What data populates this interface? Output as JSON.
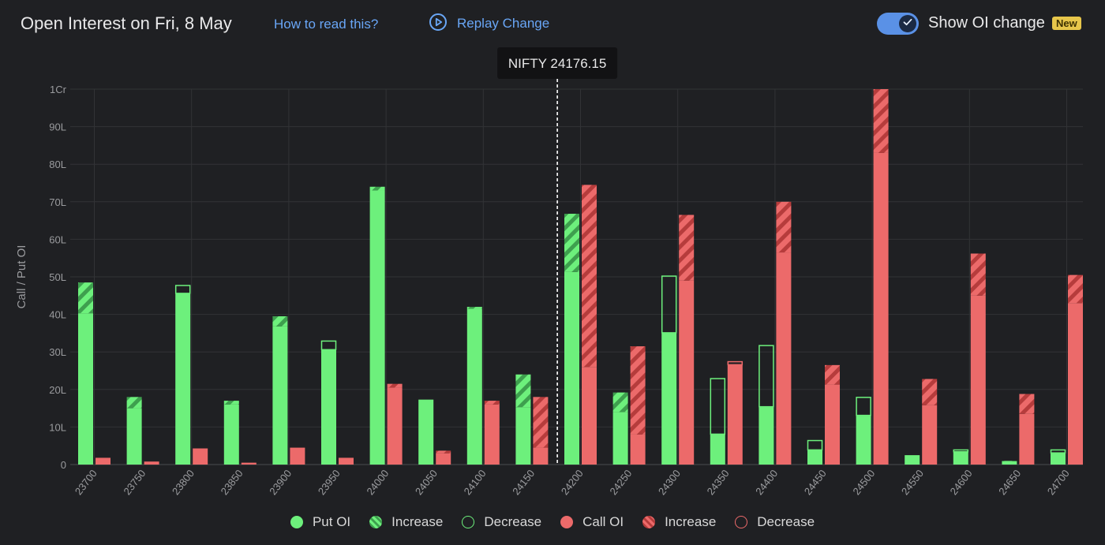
{
  "header": {
    "title": "Open Interest on Fri, 8 May",
    "how_label": "How to read this?",
    "replay_label": "Replay Change",
    "toggle_label": "Show OI change",
    "toggle_on": true,
    "badge": "New"
  },
  "colors": {
    "background": "#1f2023",
    "put": "#6df07c",
    "put_dark": "#3e9f4e",
    "call": "#ec6a6a",
    "call_dark": "#b63c3c",
    "accent": "#5a91e6",
    "badge": "#e7c64b"
  },
  "legend": [
    {
      "label": "Put OI",
      "kind": "solid",
      "side": "put"
    },
    {
      "label": "Increase",
      "kind": "hatch",
      "side": "put"
    },
    {
      "label": "Decrease",
      "kind": "outline",
      "side": "put"
    },
    {
      "label": "Call OI",
      "kind": "solid",
      "side": "call"
    },
    {
      "label": "Increase",
      "kind": "hatch",
      "side": "call"
    },
    {
      "label": "Decrease",
      "kind": "outline",
      "side": "call"
    }
  ],
  "chart_data": {
    "type": "bar",
    "ylabel": "Call / Put OI",
    "ylim": [
      0,
      100
    ],
    "y_unit": "lakh",
    "yticks": [
      "0",
      "10L",
      "20L",
      "30L",
      "40L",
      "50L",
      "60L",
      "70L",
      "80L",
      "90L",
      "1Cr"
    ],
    "categories": [
      "23700",
      "23750",
      "23800",
      "23850",
      "23900",
      "23950",
      "24000",
      "24050",
      "24100",
      "24150",
      "24200",
      "24250",
      "24300",
      "24350",
      "24400",
      "24450",
      "24500",
      "24550",
      "24600",
      "24650",
      "24700"
    ],
    "spot": {
      "label": "NIFTY 24176.15",
      "value": 24176.15
    },
    "series": [
      {
        "name": "Put OI",
        "side": "put",
        "current": [
          48.5,
          18.0,
          45.5,
          17.0,
          39.5,
          30.5,
          74.0,
          17.3,
          42.0,
          24.0,
          66.8,
          19.2,
          35.0,
          8.0,
          15.3,
          3.8,
          13.0,
          2.5,
          3.3,
          1.0,
          3.0
        ],
        "previous": [
          40.3,
          15.0,
          47.8,
          16.0,
          36.8,
          33.0,
          73.0,
          17.3,
          41.5,
          15.3,
          51.3,
          14.0,
          50.3,
          23.0,
          31.8,
          6.5,
          18.0,
          2.5,
          4.0,
          0.9,
          4.0
        ]
      },
      {
        "name": "Call OI",
        "side": "call",
        "current": [
          1.8,
          0.8,
          4.3,
          0.5,
          4.5,
          1.8,
          21.5,
          3.7,
          17.0,
          18.0,
          74.5,
          31.5,
          66.5,
          26.5,
          70.0,
          26.5,
          100.0,
          22.8,
          56.2,
          18.8,
          50.5
        ],
        "previous": [
          1.8,
          0.8,
          4.3,
          0.5,
          4.5,
          1.8,
          20.5,
          3.0,
          16.0,
          4.5,
          26.0,
          8.0,
          49.0,
          27.5,
          56.5,
          21.3,
          83.0,
          15.8,
          45.0,
          13.5,
          43.0
        ]
      }
    ]
  }
}
